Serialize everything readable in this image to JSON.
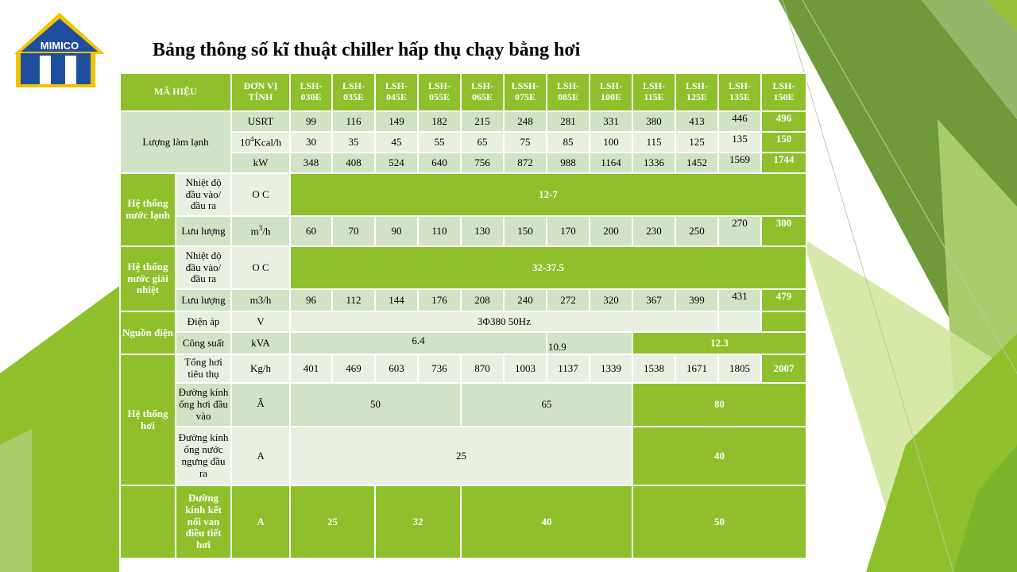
{
  "logo": {
    "text": "MIMICO"
  },
  "title": "Bảng thông số kĩ thuật chiller hấp thụ chạy bằng hơi",
  "header": {
    "ma_hieu": "MÃ HIỆU",
    "don_vi": "ĐƠN VỊ TÍNH",
    "models": [
      "LSH-030E",
      "LSH-035E",
      "LSH-045E",
      "LSH-055E",
      "LSH-065E",
      "LSSH-075E",
      "LSH-085E",
      "LSH-100E",
      "LSH-115E",
      "LSH-125E",
      "LSH-135E",
      "LSH-150E"
    ]
  },
  "cooling": {
    "label": "Lượng làm lạnh",
    "rows": [
      {
        "unit": "USRT",
        "values": [
          "99",
          "116",
          "149",
          "182",
          "215",
          "248",
          "281",
          "331",
          "380",
          "413",
          "446",
          "496"
        ]
      },
      {
        "unit_sup": "4",
        "unit_pre": "10",
        "unit_post": "Kcal/h",
        "values": [
          "30",
          "35",
          "45",
          "55",
          "65",
          "75",
          "85",
          "100",
          "115",
          "125",
          "135",
          "150"
        ]
      },
      {
        "unit": "kW",
        "values": [
          "348",
          "408",
          "524",
          "640",
          "756",
          "872",
          "988",
          "1164",
          "1336",
          "1452",
          "1569",
          "1744"
        ]
      }
    ]
  },
  "chilled_water": {
    "label": "Hệ thống nước lạnh",
    "temp_label": "Nhiệt độ đầu vào/ đầu ra",
    "temp_unit": "O C",
    "temp_value": "12-7",
    "flow_label": "Lưu lượng",
    "flow_unit_pre": "m",
    "flow_unit_sup": "3",
    "flow_unit_post": "/h",
    "flow_values": [
      "60",
      "70",
      "90",
      "110",
      "130",
      "150",
      "170",
      "200",
      "230",
      "250",
      "270",
      "300"
    ]
  },
  "cooling_water": {
    "label": "Hệ thống nước giải nhiệt",
    "temp_label": "Nhiệt độ đầu vào/ đầu ra",
    "temp_unit": "O C",
    "temp_value": "32-37.5",
    "flow_label": "Lưu lượng",
    "flow_unit": "m3/h",
    "flow_values": [
      "96",
      "112",
      "144",
      "176",
      "208",
      "240",
      "272",
      "320",
      "367",
      "399",
      "431",
      "479"
    ]
  },
  "power": {
    "label": "Nguồn điện",
    "voltage_label": "Điện áp",
    "voltage_unit": "V",
    "voltage_value": "3Φ380 50Hz",
    "capacity_label": "Công suất",
    "capacity_unit": "kVA",
    "capacity_values": [
      "6.4",
      "10.9",
      "12.3"
    ]
  },
  "steam": {
    "label": "Hệ thống hơi",
    "consumption_label": "Tổng hơi tiêu thụ",
    "consumption_unit": "Kg/h",
    "consumption_values": [
      "401",
      "469",
      "603",
      "736",
      "870",
      "1003",
      "1137",
      "1339",
      "1538",
      "1671",
      "1805",
      "2007"
    ],
    "inlet_label": "Đường kính ống hơi đầu vào",
    "inlet_unit": "Â",
    "inlet_values": [
      "50",
      "65",
      "80"
    ],
    "condensate_label": "Đường kính ống nước ngưng đầu ra",
    "condensate_unit": "A",
    "condensate_values": [
      "25",
      "40"
    ],
    "valve_label": "Đường kính kết nối van điều tiết hơi",
    "valve_unit": "A",
    "valve_values": [
      "25",
      "32",
      "40",
      "50"
    ]
  },
  "colors": {
    "accent_green": "#8dc02a",
    "row_light": "#d2e2c4",
    "row_lighter": "#e9f0e2",
    "logo_blue": "#1f4e9e",
    "logo_gold": "#f2c200"
  }
}
